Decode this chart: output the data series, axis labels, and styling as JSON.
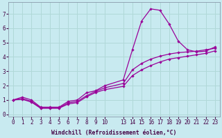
{
  "background_color": "#c8eaf0",
  "line_color": "#990099",
  "grid_color": "#b0d8d8",
  "xlabel": "Windchill (Refroidissement éolien,°C)",
  "xlim_index": [
    -0.5,
    21.5
  ],
  "ylim": [
    -0.15,
    7.8
  ],
  "yticks": [
    0,
    1,
    2,
    3,
    4,
    5,
    6,
    7
  ],
  "xtick_labels": [
    "0",
    "1",
    "2",
    "3",
    "4",
    "5",
    "6",
    "7",
    "8",
    "9",
    "10",
    "",
    "13",
    "14",
    "15",
    "16",
    "17",
    "18",
    "19",
    "20",
    "21",
    "22",
    "23"
  ],
  "xtick_positions": [
    0,
    1,
    2,
    3,
    4,
    5,
    6,
    7,
    8,
    9,
    10,
    12,
    13,
    14,
    15,
    16,
    17,
    18,
    19,
    20,
    21,
    22
  ],
  "xtick_display": [
    "0",
    "1",
    "2",
    "3",
    "4",
    "5",
    "6",
    "7",
    "8",
    "9",
    "10",
    "13",
    "14",
    "15",
    "16",
    "17",
    "18",
    "19",
    "20",
    "21",
    "22",
    "23"
  ],
  "series": [
    {
      "idx": [
        0,
        1,
        2,
        3,
        4,
        5,
        6,
        7,
        8,
        9,
        10,
        12,
        13,
        14,
        15,
        16,
        17,
        18,
        19,
        20,
        21,
        22
      ],
      "y": [
        1.0,
        1.2,
        1.0,
        0.5,
        0.5,
        0.5,
        0.9,
        1.0,
        1.5,
        1.65,
        2.0,
        2.4,
        4.5,
        6.5,
        7.35,
        7.25,
        6.3,
        5.1,
        4.5,
        4.35,
        4.4,
        4.7
      ]
    },
    {
      "idx": [
        0,
        1,
        2,
        3,
        4,
        5,
        6,
        7,
        8,
        9,
        10,
        12,
        13,
        14,
        15,
        16,
        17,
        18,
        19,
        20,
        21,
        22
      ],
      "y": [
        1.0,
        1.1,
        0.9,
        0.45,
        0.45,
        0.45,
        0.8,
        0.9,
        1.3,
        1.6,
        1.85,
        2.15,
        3.1,
        3.55,
        3.85,
        4.05,
        4.2,
        4.3,
        4.35,
        4.4,
        4.5,
        4.6
      ]
    },
    {
      "idx": [
        0,
        1,
        2,
        3,
        4,
        5,
        6,
        7,
        8,
        9,
        10,
        12,
        13,
        14,
        15,
        16,
        17,
        18,
        19,
        20,
        21,
        22
      ],
      "y": [
        1.0,
        1.05,
        0.85,
        0.42,
        0.42,
        0.42,
        0.72,
        0.82,
        1.22,
        1.52,
        1.72,
        1.95,
        2.7,
        3.1,
        3.4,
        3.65,
        3.85,
        3.95,
        4.05,
        4.15,
        4.25,
        4.42
      ]
    }
  ]
}
